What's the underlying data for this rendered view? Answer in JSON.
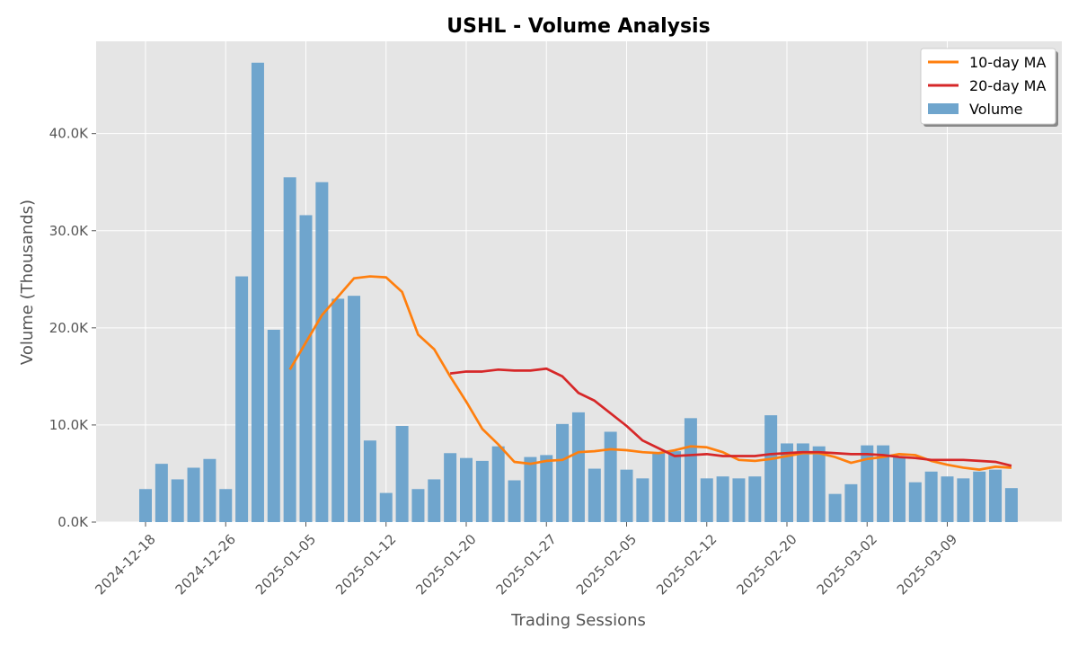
{
  "chart_data": {
    "type": "bar",
    "title": "USHL - Volume Analysis",
    "xlabel": "Trading Sessions",
    "ylabel": "Volume (Thousands)",
    "ylim": [
      0,
      49500
    ],
    "yticks": [
      0,
      10000,
      20000,
      30000,
      40000
    ],
    "ytick_labels": [
      "0.0K",
      "10.0K",
      "20.0K",
      "30.0K",
      "40.0K"
    ],
    "grid": true,
    "legend_position": "top-right",
    "xtick_labels": [
      "2024-12-18",
      "2024-12-26",
      "2025-01-05",
      "2025-01-12",
      "2025-01-20",
      "2025-01-27",
      "2025-02-05",
      "2025-02-12",
      "2025-02-20",
      "2025-03-02",
      "2025-03-09"
    ],
    "xtick_index": [
      0,
      5,
      10,
      15,
      20,
      25,
      30,
      35,
      40,
      45,
      50
    ],
    "series": [
      {
        "name": "Volume",
        "kind": "bar",
        "color": "#6fa5cd",
        "values": [
          3400,
          6000,
          4400,
          5600,
          6500,
          3400,
          25300,
          47300,
          19800,
          35500,
          31600,
          35000,
          23000,
          23300,
          8400,
          3000,
          9900,
          3400,
          4400,
          7100,
          6600,
          6300,
          7800,
          4300,
          6700,
          6900,
          10100,
          11300,
          5500,
          9300,
          5400,
          4500,
          7100,
          7300,
          10700,
          4500,
          4700,
          4500,
          4700,
          11000,
          8100,
          8100,
          7800,
          2900,
          3900,
          7900,
          7900,
          6700,
          4100,
          5200,
          4700,
          4500,
          5200,
          5400,
          3500
        ]
      },
      {
        "name": "10-day MA",
        "kind": "line",
        "color": "#ff7f0e",
        "start_index": 9,
        "values": [
          15700,
          18500,
          21300,
          23200,
          25100,
          25300,
          25200,
          23700,
          19300,
          17800,
          15000,
          12400,
          9600,
          8000,
          6200,
          6000,
          6300,
          6400,
          7200,
          7300,
          7500,
          7400,
          7200,
          7100,
          7400,
          7800,
          7700,
          7200,
          6400,
          6300,
          6500,
          6800,
          7100,
          7100,
          6700,
          6100,
          6500,
          6700,
          7000,
          6900,
          6300,
          5900,
          5600,
          5400,
          5700,
          5600
        ]
      },
      {
        "name": "20-day MA",
        "kind": "line",
        "color": "#d62728",
        "start_index": 19,
        "values": [
          15300,
          15500,
          15500,
          15700,
          15600,
          15600,
          15800,
          15000,
          13300,
          12500,
          11200,
          9900,
          8400,
          7600,
          6800,
          6900,
          7000,
          6800,
          6800,
          6800,
          7000,
          7100,
          7200,
          7200,
          7100,
          7000,
          7000,
          6900,
          6700,
          6600,
          6400,
          6400,
          6400,
          6300,
          6200,
          5800
        ]
      }
    ]
  }
}
